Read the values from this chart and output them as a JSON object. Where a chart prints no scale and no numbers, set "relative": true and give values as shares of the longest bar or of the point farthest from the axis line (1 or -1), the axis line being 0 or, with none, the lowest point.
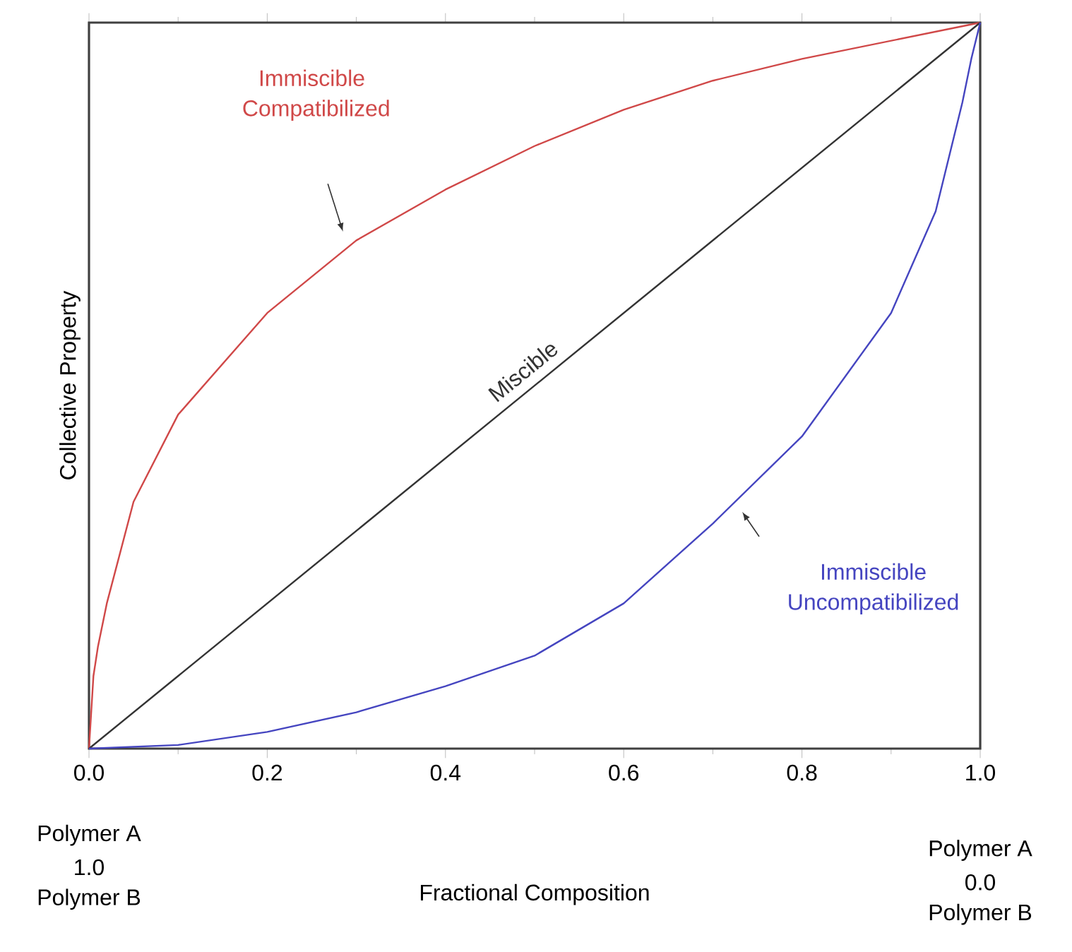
{
  "chart_data": {
    "type": "line",
    "xlabel": "Fractional Composition",
    "ylabel": "Collective Property",
    "relative": true,
    "grid": false,
    "marker": "none",
    "line_style": "solid",
    "xlim": [
      0,
      1
    ],
    "xticks": [
      {
        "value": 0,
        "label": "0.0"
      },
      0.2,
      0.4,
      0.6,
      0.8,
      {
        "value": 1,
        "label": "1.0"
      }
    ],
    "series": [
      {
        "name": "Immiscible Compatibilized",
        "color": "#d04848",
        "x": [
          0,
          0.005,
          0.01,
          0.02,
          0.05,
          0.1,
          0.2,
          0.3,
          0.4,
          0.5,
          0.6,
          0.7,
          0.8,
          0.9,
          1
        ],
        "values": [
          0,
          0.1,
          0.14,
          0.2,
          0.34,
          0.46,
          0.6,
          0.7,
          0.77,
          0.83,
          0.88,
          0.92,
          0.95,
          0.975,
          1
        ]
      },
      {
        "name": "Miscible",
        "color": "#333333",
        "x": [
          0,
          1
        ],
        "values": [
          0,
          1
        ]
      },
      {
        "name": "Immiscible Uncompatibilized",
        "color": "#4545c0",
        "x": [
          0,
          0.1,
          0.2,
          0.3,
          0.4,
          0.5,
          0.6,
          0.7,
          0.8,
          0.9,
          0.95,
          0.98,
          0.99,
          1
        ],
        "values": [
          0,
          0.005,
          0.023,
          0.05,
          0.086,
          0.128,
          0.2,
          0.31,
          0.43,
          0.6,
          0.74,
          0.89,
          0.95,
          1
        ]
      }
    ],
    "annotations": [
      "Polymer A",
      "1.0",
      "Polymer B",
      "Polymer A",
      "0.0",
      "Polymer B"
    ]
  }
}
